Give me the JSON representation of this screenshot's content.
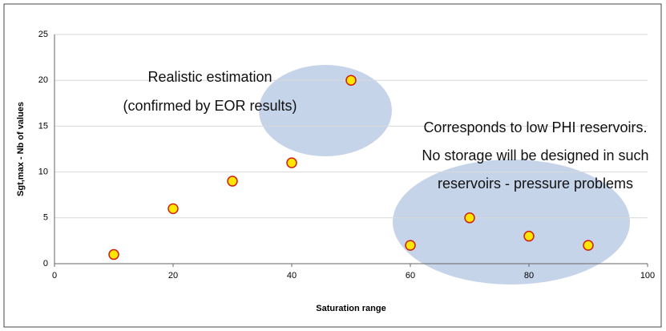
{
  "chart_data": {
    "type": "scatter",
    "x_label": "Saturation range",
    "y_label": "Sgt,max - Nb of values",
    "x": [
      10,
      20,
      30,
      40,
      50,
      60,
      70,
      80,
      90
    ],
    "series": [
      {
        "color": "#ffe600",
        "values": [
          1,
          6,
          9,
          11,
          20,
          2,
          5,
          3,
          2
        ]
      }
    ],
    "xlim": [
      0,
      100
    ],
    "xticks": [
      0,
      20,
      40,
      60,
      80,
      100
    ],
    "ylim": [
      0,
      25
    ],
    "yticks": [
      0,
      5,
      10,
      15,
      20,
      25
    ],
    "grid": true,
    "annotations": [
      {
        "lines": [
          "Realistic estimation",
          "(confirmed by EOR results)"
        ]
      },
      {
        "lines": [
          "Corresponds to low PHI reservoirs.",
          "No storage will be designed in such",
          "reservoirs - pressure problems"
        ]
      }
    ]
  }
}
